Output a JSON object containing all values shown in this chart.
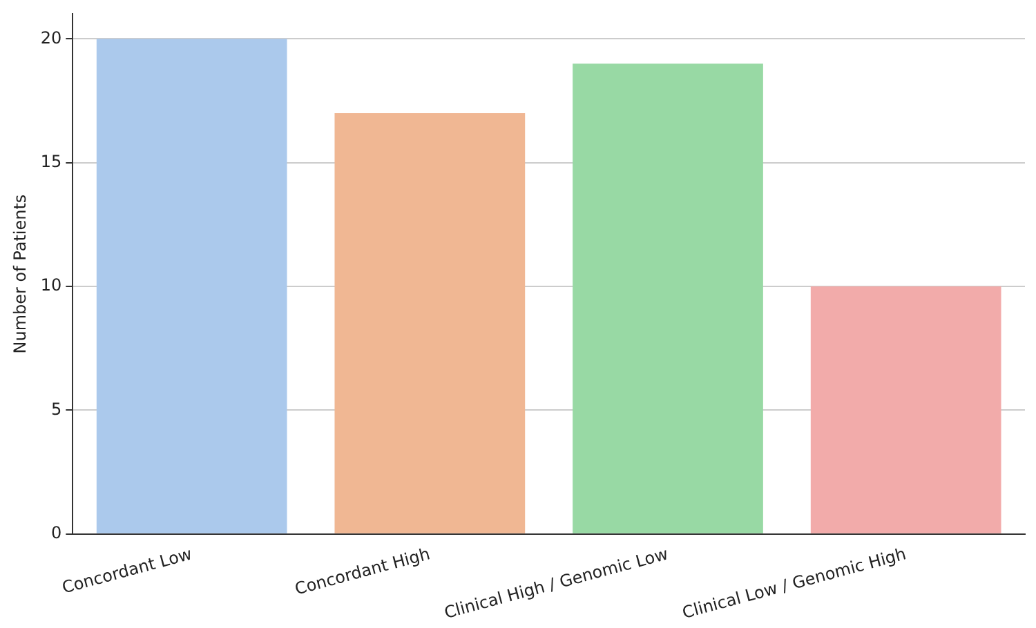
{
  "chart_data": {
    "type": "bar",
    "ylabel": "Number of Patients",
    "categories": [
      "Concordant Low",
      "Concordant High",
      "Clinical High / Genomic Low",
      "Clinical Low / Genomic High"
    ],
    "values": [
      20,
      17,
      19,
      10
    ],
    "colors": [
      "#abc9ec",
      "#f0b793",
      "#98d9a4",
      "#f2abaa"
    ],
    "ylim": [
      0,
      21
    ],
    "yticks": [
      0,
      5,
      10,
      15,
      20
    ],
    "grid": "y",
    "legend": false
  }
}
